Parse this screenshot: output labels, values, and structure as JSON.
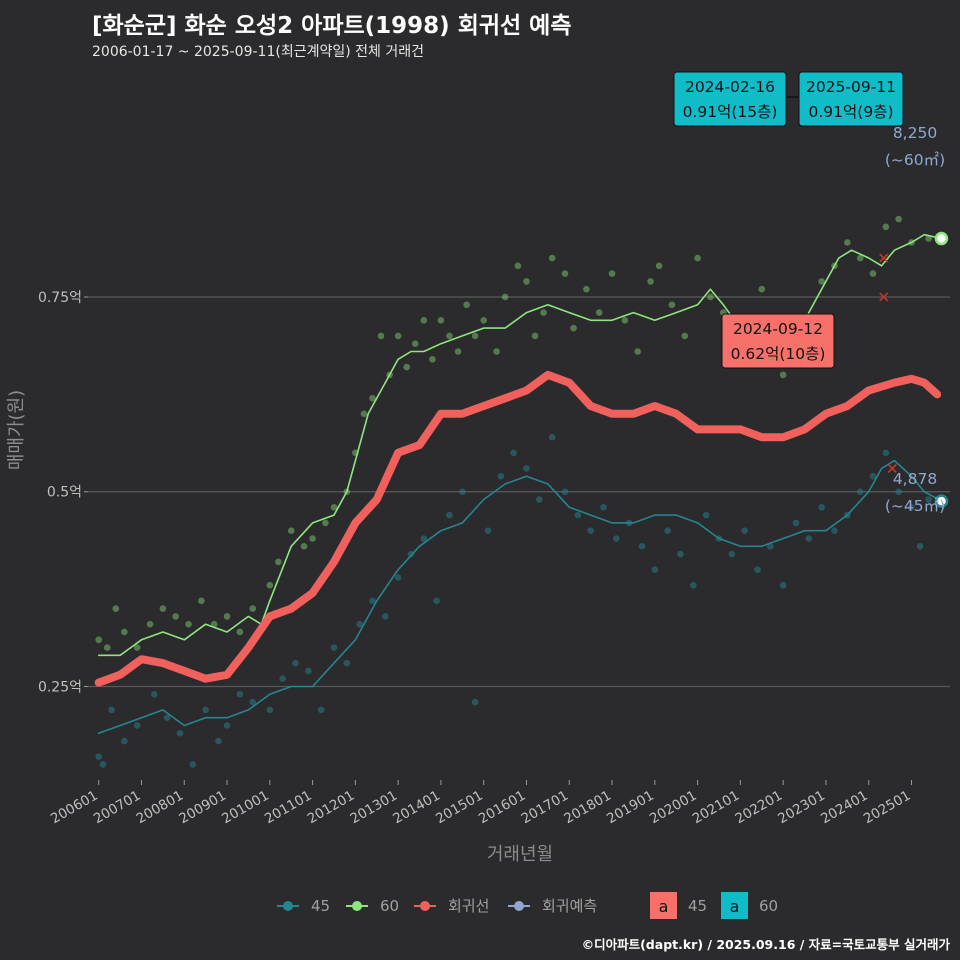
{
  "header": {
    "title": "[화순군] 화순 오성2 아파트(1998) 회귀선 예측",
    "subtitle": "2006-01-17 ~ 2025-09-11(최근계약일) 전체 거래건"
  },
  "caption": "©디아파트(dapt.kr) / 2025.09.16 / 자료=국토교통부 실거래가",
  "colors": {
    "s45": "#26868f",
    "s60": "#8fe67f",
    "trend": "#f0605d",
    "pred": "#8fa8d0",
    "bg": "#2b2b2d",
    "grid": "#5a5a5a",
    "box60": "#10bcc8",
    "box_trend": "#f7716a"
  },
  "chart_data": {
    "type": "line",
    "xlabel": "거래년월",
    "ylabel": "매매가(원)",
    "y_ticks": [
      {
        "value": 0.25,
        "label": "0.25억"
      },
      {
        "value": 0.5,
        "label": "0.5억"
      },
      {
        "value": 0.75,
        "label": "0.75억"
      }
    ],
    "ylim": [
      0.13,
      0.99
    ],
    "x_ticks": [
      "200601",
      "200701",
      "200801",
      "200901",
      "201001",
      "201101",
      "201201",
      "201301",
      "201401",
      "201501",
      "201601",
      "201701",
      "201801",
      "201901",
      "202001",
      "202101",
      "202201",
      "202301",
      "202401",
      "202501"
    ],
    "xlim": [
      2005.75,
      2025.9
    ],
    "legend_lines": [
      {
        "label": "45",
        "color": "#26868f"
      },
      {
        "label": "60",
        "color": "#8fe67f"
      },
      {
        "label": "회귀선",
        "color": "#f0605d"
      },
      {
        "label": "회귀예측",
        "color": "#8fa8d0"
      }
    ],
    "legend_boxes": [
      {
        "glyph": "a",
        "label": "45",
        "color": "#f7716a"
      },
      {
        "glyph": "a",
        "label": "60",
        "color": "#10bcc8"
      }
    ],
    "series": [
      {
        "name": "60",
        "x": [
          2006.0,
          2006.5,
          2007.0,
          2007.5,
          2008.0,
          2008.5,
          2009.0,
          2009.5,
          2009.8,
          2010.0,
          2010.5,
          2011.0,
          2011.5,
          2011.8,
          2012.0,
          2012.3,
          2012.6,
          2013.0,
          2013.3,
          2013.6,
          2014.0,
          2014.5,
          2015.0,
          2015.5,
          2016.0,
          2016.5,
          2017.0,
          2017.5,
          2018.0,
          2018.5,
          2019.0,
          2019.5,
          2020.0,
          2020.3,
          2020.6,
          2021.0,
          2021.3,
          2021.6,
          2022.0,
          2022.3,
          2022.6,
          2023.0,
          2023.3,
          2023.6,
          2024.0,
          2024.3,
          2024.6,
          2025.0,
          2025.3,
          2025.7
        ],
        "y": [
          0.29,
          0.29,
          0.31,
          0.32,
          0.31,
          0.33,
          0.32,
          0.34,
          0.33,
          0.36,
          0.43,
          0.46,
          0.47,
          0.5,
          0.54,
          0.6,
          0.63,
          0.67,
          0.68,
          0.68,
          0.69,
          0.7,
          0.71,
          0.71,
          0.73,
          0.74,
          0.73,
          0.72,
          0.72,
          0.73,
          0.72,
          0.73,
          0.74,
          0.76,
          0.74,
          0.71,
          0.69,
          0.68,
          0.66,
          0.68,
          0.73,
          0.77,
          0.8,
          0.81,
          0.8,
          0.79,
          0.81,
          0.82,
          0.83,
          0.825
        ]
      },
      {
        "name": "45",
        "x": [
          2006.0,
          2006.5,
          2007.0,
          2007.5,
          2008.0,
          2008.5,
          2009.0,
          2009.5,
          2010.0,
          2010.5,
          2011.0,
          2011.5,
          2012.0,
          2012.5,
          2013.0,
          2013.5,
          2014.0,
          2014.5,
          2015.0,
          2015.5,
          2016.0,
          2016.5,
          2017.0,
          2017.5,
          2018.0,
          2018.5,
          2019.0,
          2019.5,
          2020.0,
          2020.5,
          2021.0,
          2021.5,
          2022.0,
          2022.5,
          2023.0,
          2023.5,
          2024.0,
          2024.3,
          2024.6,
          2025.0,
          2025.3,
          2025.7
        ],
        "y": [
          0.19,
          0.2,
          0.21,
          0.22,
          0.2,
          0.21,
          0.21,
          0.22,
          0.24,
          0.25,
          0.25,
          0.28,
          0.31,
          0.36,
          0.4,
          0.43,
          0.45,
          0.46,
          0.49,
          0.51,
          0.52,
          0.51,
          0.48,
          0.47,
          0.46,
          0.46,
          0.47,
          0.47,
          0.46,
          0.44,
          0.43,
          0.43,
          0.44,
          0.45,
          0.45,
          0.47,
          0.5,
          0.53,
          0.54,
          0.52,
          0.5,
          0.488
        ]
      },
      {
        "name": "회귀선",
        "x": [
          2006.0,
          2006.5,
          2007.0,
          2007.5,
          2008.0,
          2008.5,
          2009.0,
          2009.5,
          2010.0,
          2010.5,
          2011.0,
          2011.5,
          2012.0,
          2012.5,
          2013.0,
          2013.5,
          2014.0,
          2014.5,
          2015.0,
          2015.5,
          2016.0,
          2016.5,
          2017.0,
          2017.5,
          2018.0,
          2018.5,
          2019.0,
          2019.5,
          2020.0,
          2020.5,
          2021.0,
          2021.5,
          2022.0,
          2022.5,
          2023.0,
          2023.5,
          2024.0,
          2024.3,
          2024.6,
          2025.0,
          2025.3,
          2025.6
        ],
        "y": [
          0.255,
          0.265,
          0.285,
          0.28,
          0.27,
          0.26,
          0.265,
          0.3,
          0.34,
          0.35,
          0.37,
          0.41,
          0.46,
          0.49,
          0.55,
          0.56,
          0.6,
          0.6,
          0.61,
          0.62,
          0.63,
          0.65,
          0.64,
          0.61,
          0.6,
          0.6,
          0.61,
          0.6,
          0.58,
          0.58,
          0.58,
          0.57,
          0.57,
          0.58,
          0.6,
          0.61,
          0.63,
          0.635,
          0.64,
          0.645,
          0.64,
          0.625
        ]
      }
    ],
    "scatter_60": [
      [
        2006.0,
        0.31
      ],
      [
        2006.2,
        0.3
      ],
      [
        2006.4,
        0.35
      ],
      [
        2006.6,
        0.32
      ],
      [
        2006.9,
        0.3
      ],
      [
        2007.2,
        0.33
      ],
      [
        2007.5,
        0.35
      ],
      [
        2007.8,
        0.34
      ],
      [
        2008.1,
        0.33
      ],
      [
        2008.4,
        0.36
      ],
      [
        2008.7,
        0.33
      ],
      [
        2009.0,
        0.34
      ],
      [
        2009.3,
        0.32
      ],
      [
        2009.6,
        0.35
      ],
      [
        2010.0,
        0.38
      ],
      [
        2010.2,
        0.41
      ],
      [
        2010.5,
        0.45
      ],
      [
        2010.8,
        0.43
      ],
      [
        2011.0,
        0.44
      ],
      [
        2011.3,
        0.46
      ],
      [
        2011.5,
        0.48
      ],
      [
        2011.8,
        0.5
      ],
      [
        2012.0,
        0.55
      ],
      [
        2012.2,
        0.6
      ],
      [
        2012.4,
        0.62
      ],
      [
        2012.6,
        0.7
      ],
      [
        2012.8,
        0.65
      ],
      [
        2013.0,
        0.7
      ],
      [
        2013.2,
        0.66
      ],
      [
        2013.4,
        0.69
      ],
      [
        2013.6,
        0.72
      ],
      [
        2013.8,
        0.67
      ],
      [
        2014.0,
        0.72
      ],
      [
        2014.2,
        0.7
      ],
      [
        2014.4,
        0.68
      ],
      [
        2014.6,
        0.74
      ],
      [
        2014.8,
        0.7
      ],
      [
        2015.0,
        0.72
      ],
      [
        2015.3,
        0.68
      ],
      [
        2015.5,
        0.75
      ],
      [
        2015.8,
        0.79
      ],
      [
        2016.0,
        0.77
      ],
      [
        2016.2,
        0.7
      ],
      [
        2016.4,
        0.73
      ],
      [
        2016.6,
        0.8
      ],
      [
        2016.9,
        0.78
      ],
      [
        2017.1,
        0.71
      ],
      [
        2017.4,
        0.76
      ],
      [
        2017.7,
        0.73
      ],
      [
        2018.0,
        0.78
      ],
      [
        2018.3,
        0.72
      ],
      [
        2018.6,
        0.68
      ],
      [
        2018.9,
        0.77
      ],
      [
        2019.1,
        0.79
      ],
      [
        2019.4,
        0.74
      ],
      [
        2019.7,
        0.7
      ],
      [
        2020.0,
        0.8
      ],
      [
        2020.3,
        0.75
      ],
      [
        2020.6,
        0.73
      ],
      [
        2020.9,
        0.68
      ],
      [
        2021.2,
        0.71
      ],
      [
        2021.5,
        0.76
      ],
      [
        2021.8,
        0.7
      ],
      [
        2022.0,
        0.65
      ],
      [
        2022.3,
        0.68
      ],
      [
        2022.6,
        0.72
      ],
      [
        2022.9,
        0.77
      ],
      [
        2023.2,
        0.79
      ],
      [
        2023.5,
        0.82
      ],
      [
        2023.8,
        0.8
      ],
      [
        2024.1,
        0.78
      ],
      [
        2024.4,
        0.84
      ],
      [
        2024.7,
        0.85
      ],
      [
        2025.0,
        0.82
      ],
      [
        2025.4,
        0.825
      ]
    ],
    "scatter_45": [
      [
        2006.0,
        0.16
      ],
      [
        2006.1,
        0.15
      ],
      [
        2006.3,
        0.22
      ],
      [
        2006.6,
        0.18
      ],
      [
        2006.9,
        0.2
      ],
      [
        2007.3,
        0.24
      ],
      [
        2007.6,
        0.21
      ],
      [
        2007.9,
        0.19
      ],
      [
        2008.2,
        0.15
      ],
      [
        2008.5,
        0.22
      ],
      [
        2008.8,
        0.18
      ],
      [
        2009.0,
        0.2
      ],
      [
        2009.3,
        0.24
      ],
      [
        2009.6,
        0.23
      ],
      [
        2010.0,
        0.22
      ],
      [
        2010.3,
        0.26
      ],
      [
        2010.6,
        0.28
      ],
      [
        2010.9,
        0.27
      ],
      [
        2011.2,
        0.22
      ],
      [
        2011.5,
        0.3
      ],
      [
        2011.8,
        0.28
      ],
      [
        2012.1,
        0.33
      ],
      [
        2012.4,
        0.36
      ],
      [
        2012.7,
        0.34
      ],
      [
        2013.0,
        0.39
      ],
      [
        2013.3,
        0.42
      ],
      [
        2013.6,
        0.44
      ],
      [
        2013.9,
        0.36
      ],
      [
        2014.2,
        0.47
      ],
      [
        2014.5,
        0.5
      ],
      [
        2014.8,
        0.23
      ],
      [
        2015.1,
        0.45
      ],
      [
        2015.4,
        0.52
      ],
      [
        2015.7,
        0.55
      ],
      [
        2016.0,
        0.53
      ],
      [
        2016.3,
        0.49
      ],
      [
        2016.6,
        0.57
      ],
      [
        2016.9,
        0.5
      ],
      [
        2017.2,
        0.47
      ],
      [
        2017.5,
        0.45
      ],
      [
        2017.8,
        0.48
      ],
      [
        2018.1,
        0.44
      ],
      [
        2018.4,
        0.46
      ],
      [
        2018.7,
        0.43
      ],
      [
        2019.0,
        0.4
      ],
      [
        2019.3,
        0.45
      ],
      [
        2019.6,
        0.42
      ],
      [
        2019.9,
        0.38
      ],
      [
        2020.2,
        0.47
      ],
      [
        2020.5,
        0.44
      ],
      [
        2020.8,
        0.42
      ],
      [
        2021.1,
        0.45
      ],
      [
        2021.4,
        0.4
      ],
      [
        2021.7,
        0.43
      ],
      [
        2022.0,
        0.38
      ],
      [
        2022.3,
        0.46
      ],
      [
        2022.6,
        0.44
      ],
      [
        2022.9,
        0.48
      ],
      [
        2023.2,
        0.45
      ],
      [
        2023.5,
        0.47
      ],
      [
        2023.8,
        0.5
      ],
      [
        2024.1,
        0.52
      ],
      [
        2024.4,
        0.55
      ],
      [
        2024.7,
        0.5
      ],
      [
        2025.0,
        0.48
      ],
      [
        2025.2,
        0.43
      ],
      [
        2025.4,
        0.49
      ]
    ],
    "red_x_markers": [
      [
        2024.35,
        0.8
      ],
      [
        2024.35,
        0.75
      ],
      [
        2024.55,
        0.53
      ]
    ],
    "annotations": [
      {
        "date": "2024-02-16",
        "price": "0.91억(15층)",
        "style": "60"
      },
      {
        "date": "2025-09-11",
        "price": "0.91억(9층)",
        "style": "60"
      },
      {
        "date": "2024-09-12",
        "price": "0.62억(10층)",
        "style": "trend"
      }
    ],
    "end_labels": [
      {
        "value": "8,250",
        "area": "(~60㎡)",
        "y": 0.825
      },
      {
        "value": "4,878",
        "area": "(~45㎡)",
        "y": 0.488
      }
    ]
  }
}
